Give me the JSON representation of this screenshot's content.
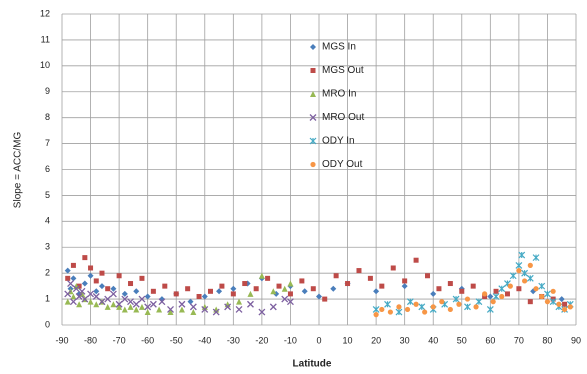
{
  "chart_data": {
    "type": "scatter",
    "xlabel": "Latitude",
    "ylabel": "Slope = ACC/MG",
    "xlim": [
      -90,
      90
    ],
    "xticks": [
      -90,
      -80,
      -70,
      -60,
      -50,
      -40,
      -30,
      -20,
      -10,
      0,
      10,
      20,
      30,
      40,
      50,
      60,
      70,
      80,
      90
    ],
    "ylim": [
      0,
      12
    ],
    "yticks": [
      0,
      1,
      2,
      3,
      4,
      5,
      6,
      7,
      8,
      9,
      10,
      11,
      12
    ],
    "grid": true,
    "legend": "upper center",
    "series": [
      {
        "name": "MGS In",
        "color": "#4a7ebb",
        "marker": "diamond",
        "x": [
          -88,
          -87,
          -86,
          -84,
          -82,
          -80,
          -78,
          -76,
          -72,
          -68,
          -64,
          -60,
          -55,
          -50,
          -45,
          -40,
          -35,
          -30,
          -25,
          -20,
          -15,
          -10,
          -5,
          0,
          5,
          10,
          20,
          30,
          40,
          50,
          60,
          75,
          85
        ],
        "values": [
          2.1,
          1.4,
          1.8,
          1.2,
          1.6,
          1.9,
          1.3,
          1.5,
          1.4,
          1.2,
          1.3,
          1.1,
          1.0,
          1.2,
          0.9,
          1.1,
          1.3,
          1.4,
          1.6,
          1.8,
          1.2,
          1.5,
          1.3,
          1.1,
          1.4,
          1.6,
          1.3,
          1.5,
          1.2,
          1.4,
          1.1,
          1.3,
          1.0
        ]
      },
      {
        "name": "MGS Out",
        "color": "#be4b48",
        "marker": "square",
        "x": [
          -88,
          -86,
          -84,
          -82,
          -80,
          -78,
          -76,
          -74,
          -70,
          -66,
          -62,
          -58,
          -54,
          -50,
          -46,
          -42,
          -38,
          -34,
          -30,
          -26,
          -22,
          -18,
          -14,
          -10,
          -6,
          -2,
          2,
          6,
          10,
          14,
          18,
          22,
          26,
          30,
          34,
          38,
          42,
          46,
          50,
          54,
          58,
          62,
          66,
          70,
          74,
          78,
          82,
          86
        ],
        "values": [
          1.8,
          2.3,
          1.5,
          2.6,
          2.2,
          1.7,
          2.0,
          1.4,
          1.9,
          1.6,
          1.8,
          1.3,
          1.5,
          1.2,
          1.4,
          1.1,
          1.3,
          1.5,
          1.2,
          1.6,
          1.4,
          1.8,
          1.5,
          1.2,
          1.7,
          1.4,
          1.0,
          1.9,
          1.6,
          2.1,
          1.8,
          1.5,
          2.2,
          1.7,
          2.5,
          1.9,
          1.4,
          1.6,
          1.3,
          1.5,
          1.1,
          1.3,
          1.2,
          1.4,
          0.9,
          1.1,
          1.0,
          0.8
        ]
      },
      {
        "name": "MRO In",
        "color": "#98b954",
        "marker": "triangle",
        "x": [
          -88,
          -87,
          -86,
          -85,
          -84,
          -83,
          -82,
          -80,
          -78,
          -76,
          -74,
          -72,
          -70,
          -68,
          -66,
          -64,
          -62,
          -60,
          -56,
          -52,
          -48,
          -44,
          -40,
          -36,
          -32,
          -28,
          -24,
          -20,
          -16,
          -12,
          -10
        ],
        "values": [
          0.9,
          1.3,
          1.1,
          1.5,
          0.8,
          1.2,
          1.0,
          0.9,
          0.8,
          0.9,
          0.7,
          0.8,
          0.7,
          0.6,
          0.7,
          0.6,
          0.7,
          0.5,
          0.6,
          0.5,
          0.6,
          0.5,
          0.7,
          0.6,
          0.8,
          0.9,
          1.2,
          1.9,
          1.3,
          1.4,
          1.6
        ]
      },
      {
        "name": "MRO Out",
        "color": "#7d60a0",
        "marker": "x",
        "x": [
          -88,
          -87,
          -86,
          -85,
          -84,
          -83,
          -82,
          -80,
          -78,
          -76,
          -74,
          -72,
          -70,
          -68,
          -66,
          -64,
          -62,
          -60,
          -58,
          -55,
          -52,
          -48,
          -44,
          -40,
          -36,
          -32,
          -28,
          -24,
          -20,
          -16,
          -12,
          -10
        ],
        "values": [
          1.2,
          1.6,
          0.9,
          1.4,
          1.1,
          1.3,
          1.0,
          1.2,
          1.1,
          0.9,
          1.0,
          1.2,
          0.8,
          1.0,
          0.9,
          0.8,
          1.0,
          0.7,
          0.8,
          0.9,
          0.6,
          0.8,
          0.7,
          0.6,
          0.5,
          0.7,
          0.6,
          0.8,
          0.5,
          0.7,
          1.0,
          0.9
        ]
      },
      {
        "name": "ODY In",
        "color": "#46aac5",
        "marker": "star",
        "x": [
          20,
          24,
          28,
          32,
          36,
          40,
          44,
          48,
          52,
          56,
          60,
          62,
          64,
          66,
          68,
          70,
          71,
          72,
          74,
          76,
          78,
          80,
          82,
          84,
          86,
          88
        ],
        "values": [
          0.6,
          0.8,
          0.5,
          0.9,
          0.7,
          0.6,
          0.8,
          1.0,
          0.7,
          0.9,
          0.6,
          1.1,
          1.4,
          1.6,
          1.9,
          2.3,
          2.7,
          2.0,
          1.8,
          2.6,
          1.5,
          1.2,
          0.9,
          0.7,
          0.6,
          0.8
        ]
      },
      {
        "name": "ODY Out",
        "color": "#f79646",
        "marker": "circle",
        "x": [
          20,
          22,
          25,
          28,
          31,
          34,
          37,
          40,
          43,
          46,
          49,
          52,
          55,
          58,
          61,
          64,
          67,
          70,
          72,
          74,
          76,
          78,
          80,
          82,
          84,
          86,
          88
        ],
        "values": [
          0.4,
          0.6,
          0.5,
          0.7,
          0.6,
          0.8,
          0.5,
          0.7,
          0.9,
          0.6,
          0.8,
          1.0,
          0.7,
          1.2,
          0.9,
          1.1,
          1.5,
          2.1,
          1.7,
          2.3,
          1.4,
          1.1,
          0.9,
          1.3,
          0.8,
          0.6,
          0.7
        ]
      }
    ]
  }
}
